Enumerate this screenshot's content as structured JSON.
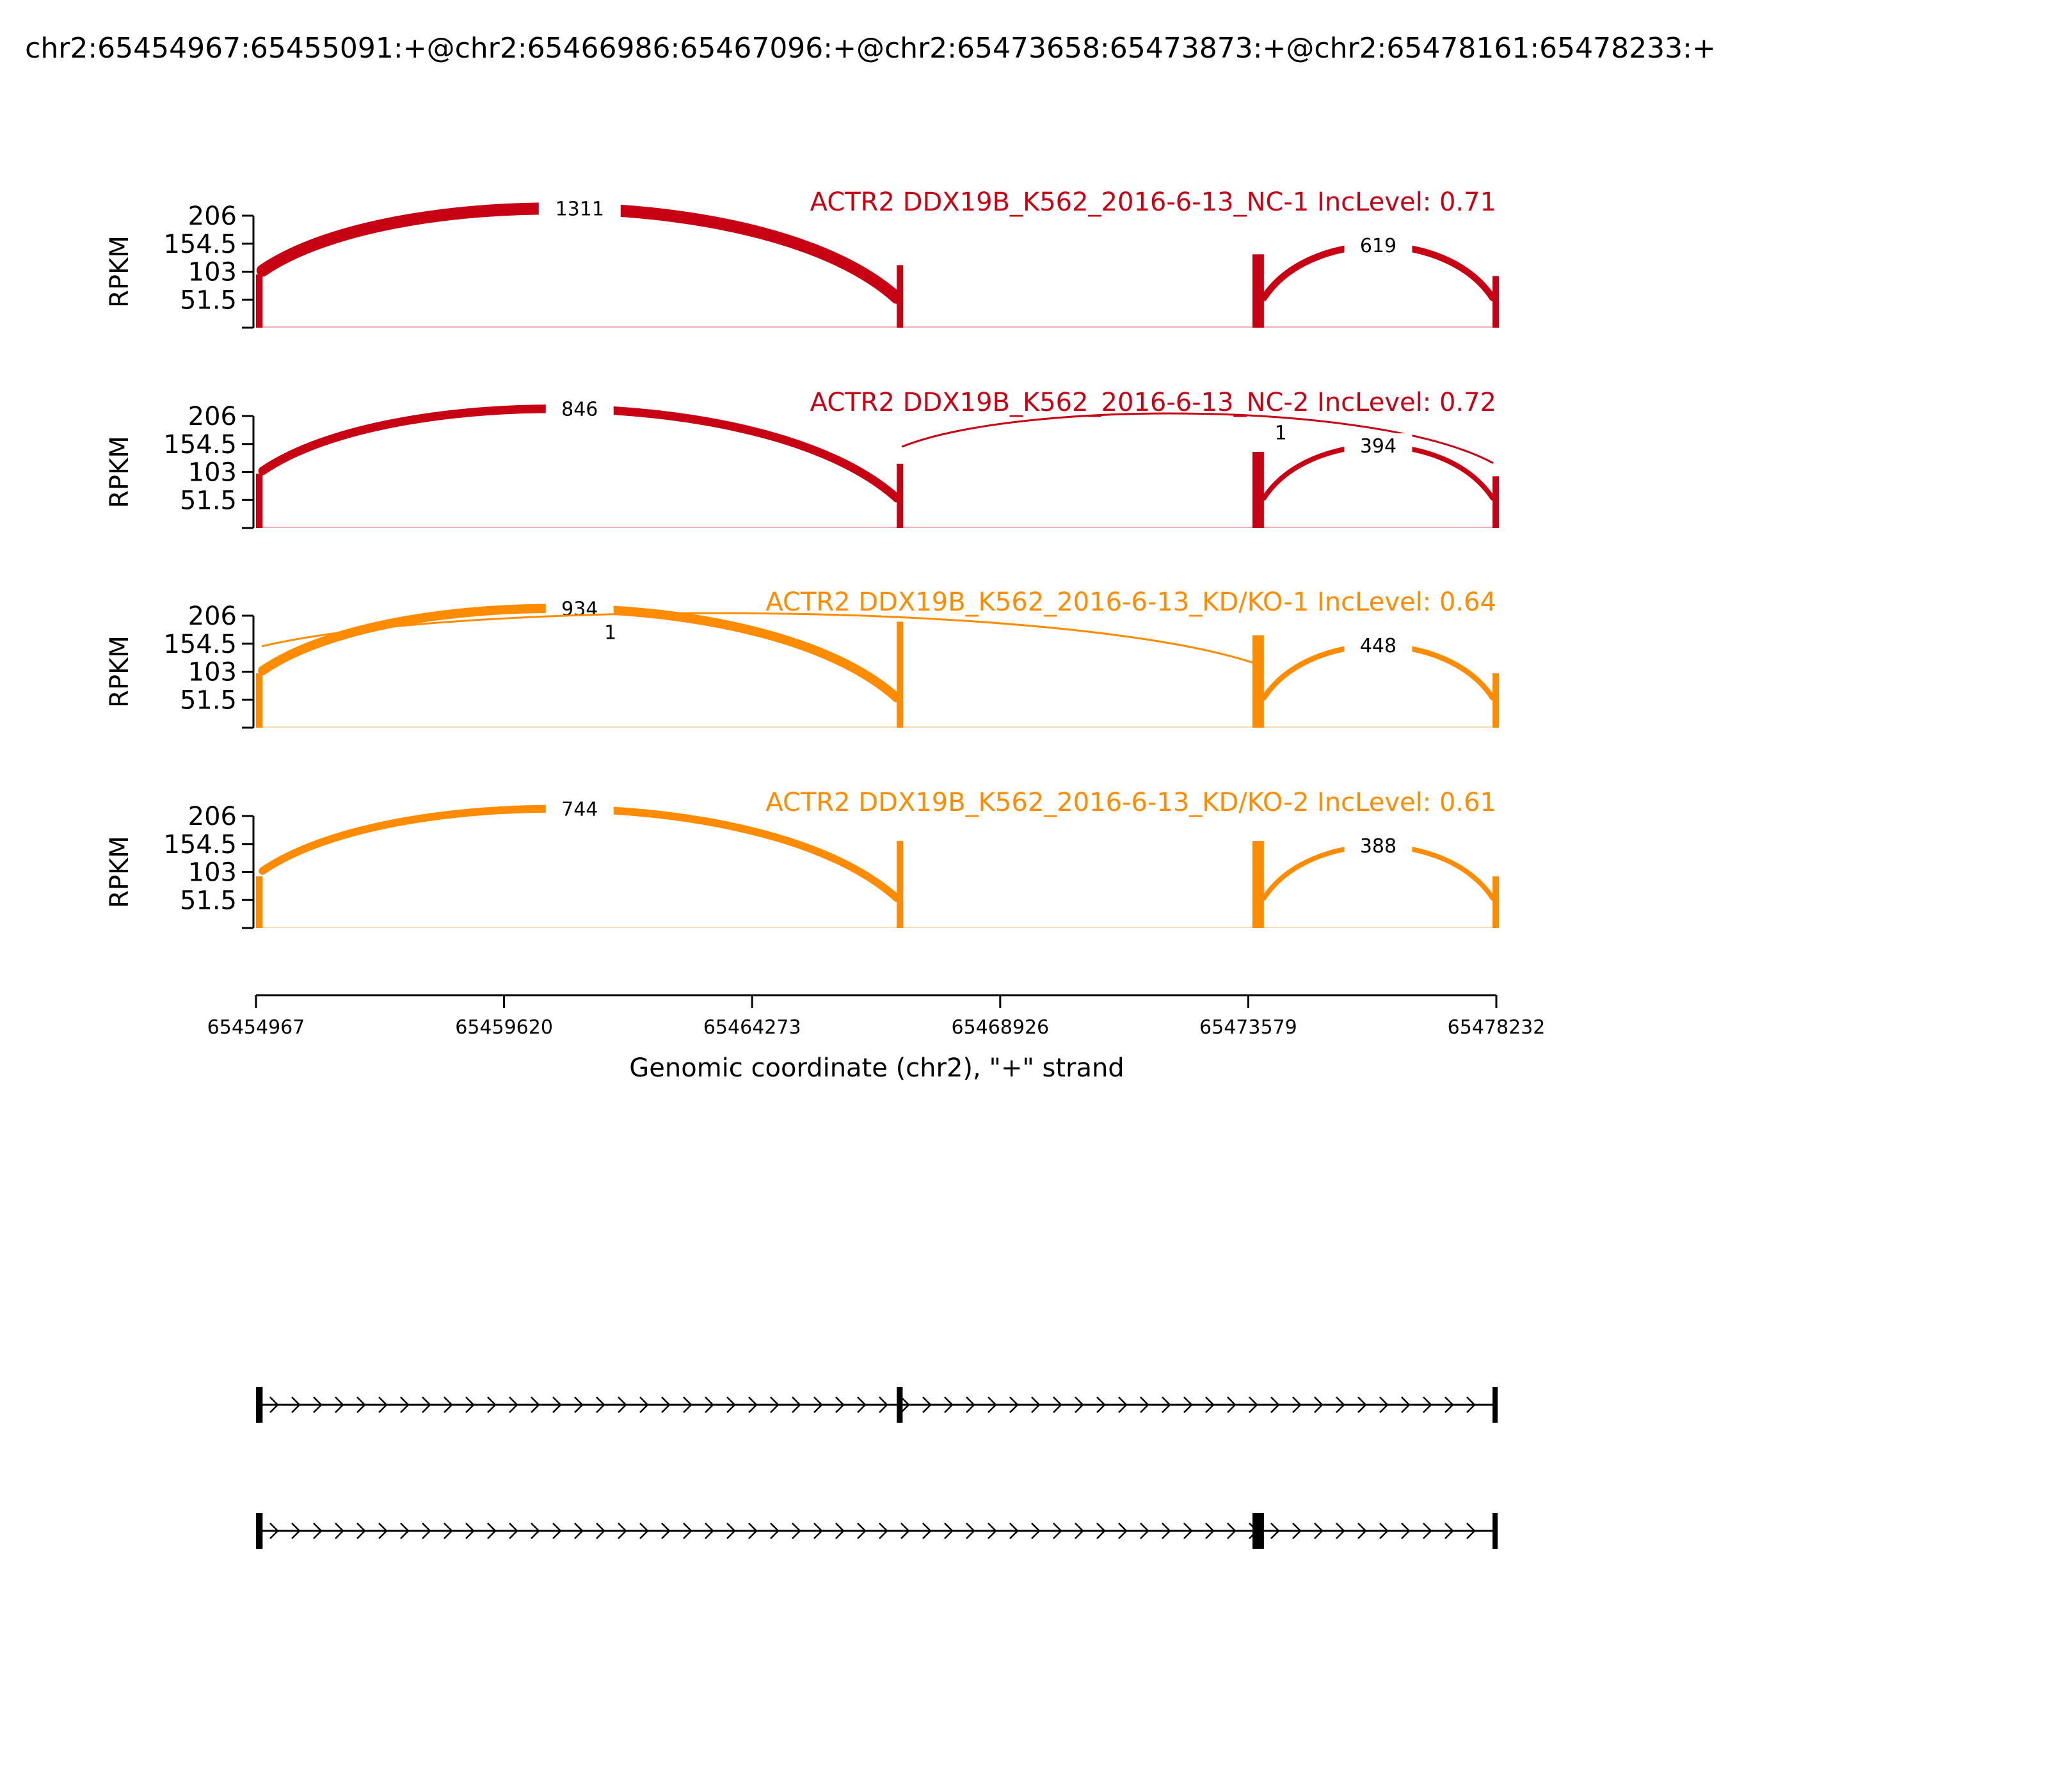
{
  "chart_data": {
    "type": "sashimi",
    "title": "chr2:65454967:65455091:+@chr2:65466986:65467096:+@chr2:65473658:65473873:+@chr2:65478161:65478233:+",
    "ylabel": "RPKM",
    "xlabel": "Genomic coordinate (chr2), \"+\" strand",
    "xlim": [
      65454967,
      65478232
    ],
    "xticks": [
      "65454967",
      "65459620",
      "65464273",
      "65468926",
      "65473579",
      "65478232"
    ],
    "ylim": [
      0,
      206
    ],
    "yticks": [
      "206",
      "154.5",
      "103",
      "51.5"
    ],
    "exons": [
      [
        65454967,
        65455091
      ],
      [
        65466986,
        65467096
      ],
      [
        65473658,
        65473873
      ],
      [
        65478161,
        65478233
      ]
    ],
    "panels": [
      {
        "label": "ACTR2 DDX19B_K562_2016-6-13_NC-1 IncLevel: 0.71",
        "color": "#c80014",
        "exon_coverage": [
          98,
          115,
          135,
          95
        ],
        "junctions": [
          {
            "start": 65455091,
            "end": 65466986,
            "count": "1311",
            "weight": 1311,
            "side": "above"
          },
          {
            "start": 65473873,
            "end": 65478161,
            "count": "619",
            "weight": 619,
            "side": "above"
          }
        ]
      },
      {
        "label": "ACTR2 DDX19B_K562_2016-6-13_NC-2 IncLevel: 0.72",
        "color": "#c80014",
        "exon_coverage": [
          100,
          118,
          140,
          95
        ],
        "junctions": [
          {
            "start": 65455091,
            "end": 65466986,
            "count": "846",
            "weight": 846,
            "side": "above"
          },
          {
            "start": 65467096,
            "end": 65478161,
            "count": "1",
            "weight": 1,
            "side": "above"
          },
          {
            "start": 65473873,
            "end": 65478161,
            "count": "394",
            "weight": 394,
            "side": "above"
          }
        ]
      },
      {
        "label": "ACTR2 DDX19B_K562_2016-6-13_KD/KO-1 IncLevel: 0.64",
        "color": "#ff8c00",
        "exon_coverage": [
          100,
          195,
          170,
          100
        ],
        "junctions": [
          {
            "start": 65455091,
            "end": 65466986,
            "count": "934",
            "weight": 934,
            "side": "above"
          },
          {
            "start": 65455091,
            "end": 65473658,
            "count": "1",
            "weight": 1,
            "side": "above"
          },
          {
            "start": 65473873,
            "end": 65478161,
            "count": "448",
            "weight": 448,
            "side": "above"
          }
        ]
      },
      {
        "label": "ACTR2 DDX19B_K562_2016-6-13_KD/KO-2 IncLevel: 0.61",
        "color": "#ff8c00",
        "exon_coverage": [
          95,
          160,
          160,
          95
        ],
        "junctions": [
          {
            "start": 65455091,
            "end": 65466986,
            "count": "744",
            "weight": 744,
            "side": "above"
          },
          {
            "start": 65473873,
            "end": 65478161,
            "count": "388",
            "weight": 388,
            "side": "above"
          }
        ]
      }
    ],
    "isoforms": [
      {
        "exons": [
          [
            65454967,
            65455091
          ],
          [
            65466986,
            65467096
          ],
          [
            65478161,
            65478233
          ]
        ]
      },
      {
        "exons": [
          [
            65454967,
            65455091
          ],
          [
            65473658,
            65473873
          ],
          [
            65478161,
            65478233
          ]
        ]
      }
    ]
  }
}
